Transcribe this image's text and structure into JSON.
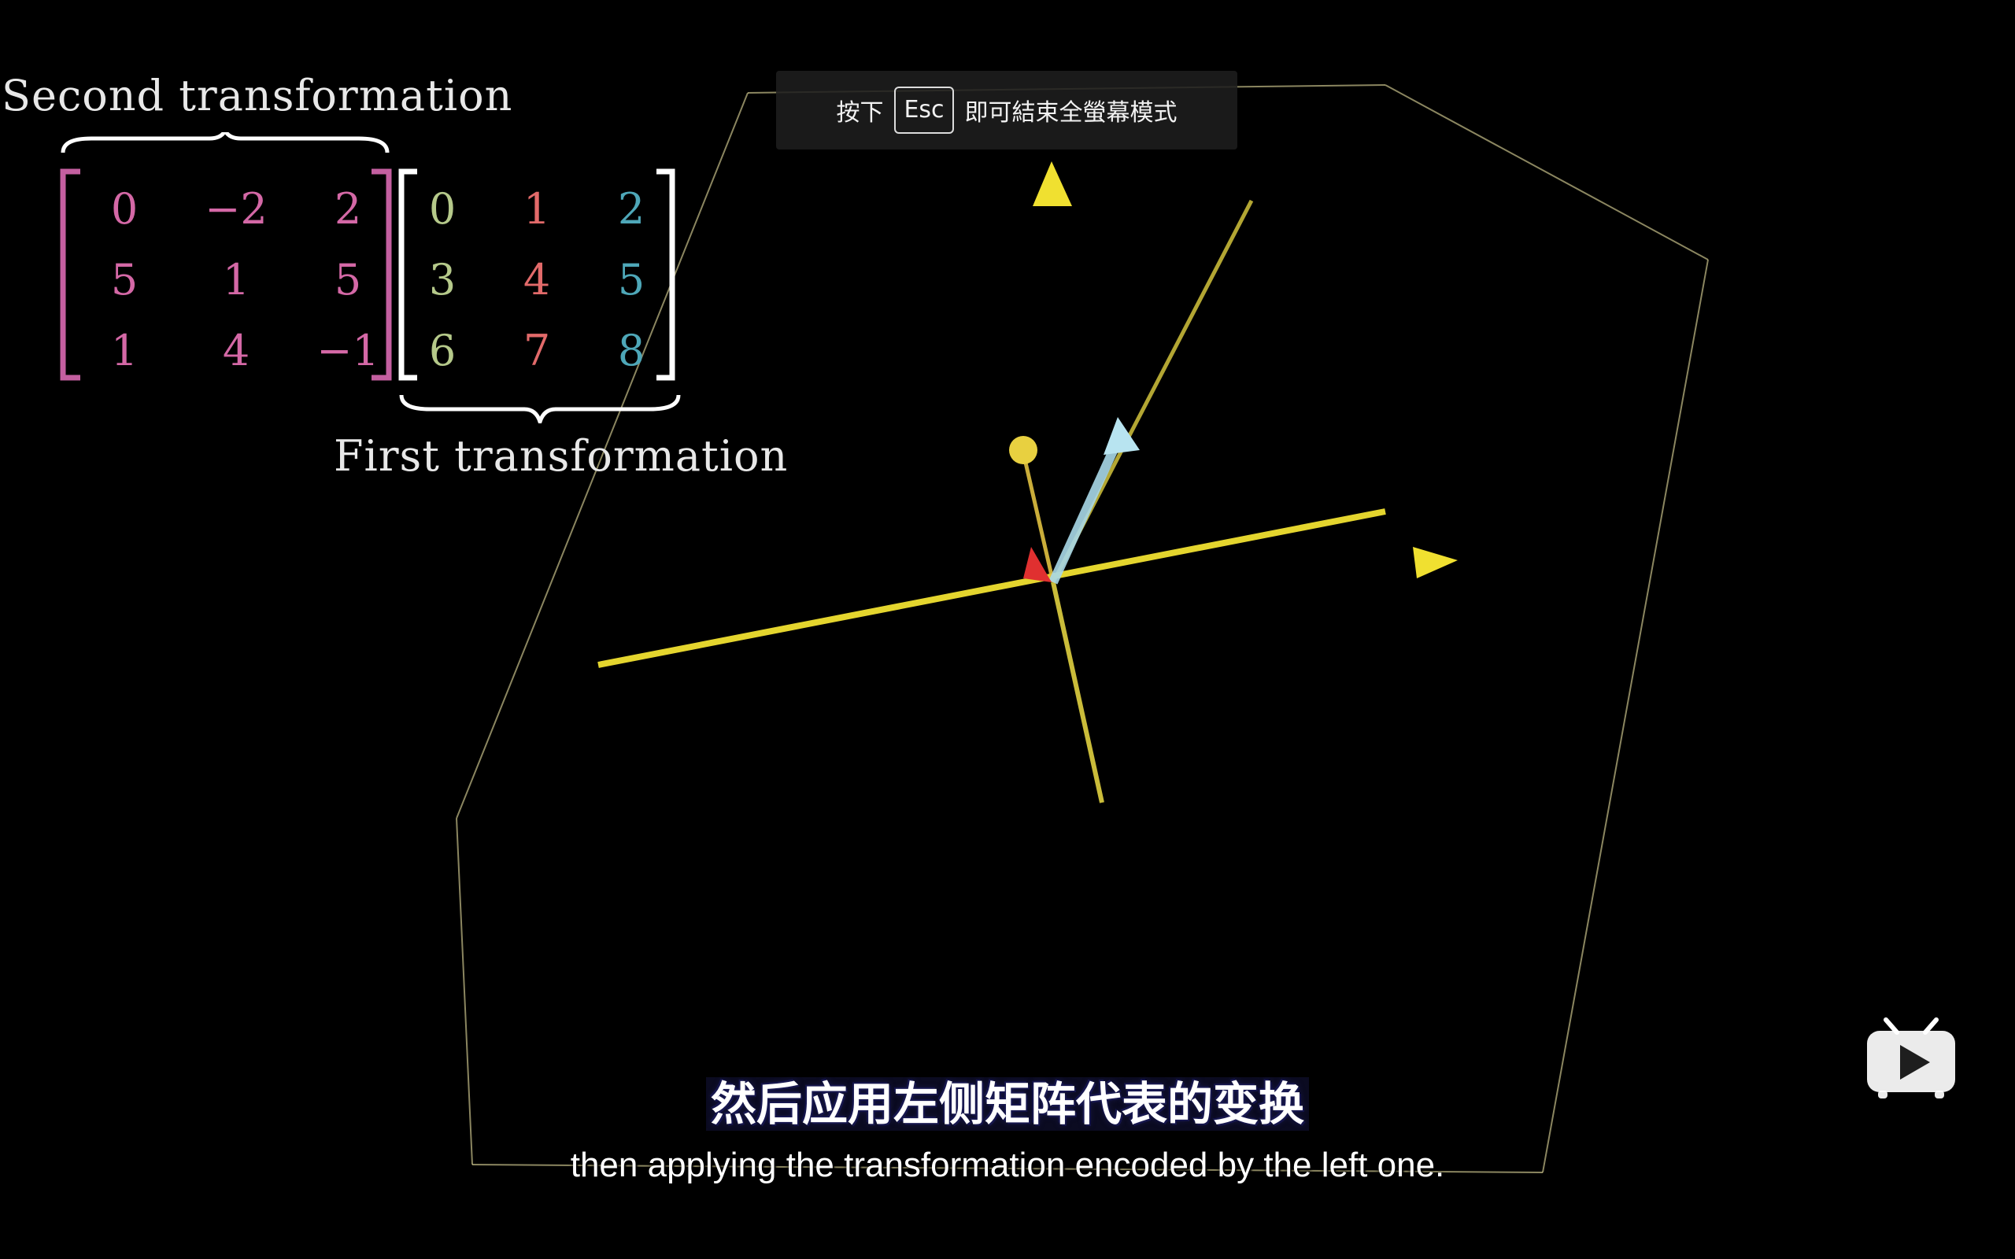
{
  "fullscreen_hint": {
    "prefix": "按下",
    "key": "Esc",
    "suffix": "即可結束全螢幕模式"
  },
  "labels": {
    "second": "Second transformation",
    "first": "First transformation"
  },
  "matrices": {
    "second": {
      "rows": [
        [
          "0",
          "−2",
          "2"
        ],
        [
          "5",
          "1",
          "5"
        ],
        [
          "1",
          "4",
          "−1"
        ]
      ],
      "color": "#d468a6",
      "bracket_color": "#c45fa0"
    },
    "first": {
      "rows": [
        [
          "0",
          "1",
          "2"
        ],
        [
          "3",
          "4",
          "5"
        ],
        [
          "6",
          "7",
          "8"
        ]
      ],
      "column_colors": [
        "#b5c98a",
        "#e26a6a",
        "#4ea7b8"
      ],
      "bracket_color": "#ffffff"
    }
  },
  "subtitles": {
    "zh": "然后应用左侧矩阵代表的变换",
    "en": "then applying the transformation encoded by the left one."
  },
  "logo": {
    "name": "bilibili-tv-icon",
    "color": "#ffffff"
  }
}
